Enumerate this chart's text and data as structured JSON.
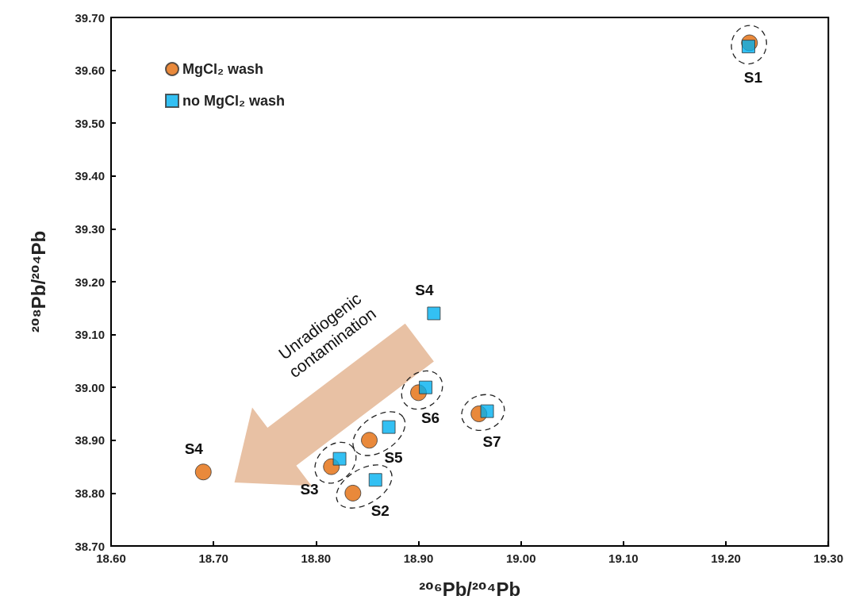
{
  "chart_data": {
    "type": "scatter",
    "xlabel": "²⁰⁶Pb/²⁰⁴Pb",
    "ylabel": "²⁰⁸Pb/²⁰⁴Pb",
    "series": [
      {
        "name": "MgCl₂ wash",
        "color": "#e46c0a",
        "marker": "circle",
        "x": [
          19.223,
          18.836,
          18.815,
          18.69,
          18.852,
          18.9,
          18.959
        ],
        "values": [
          39.652,
          38.8,
          38.85,
          38.84,
          38.9,
          38.99,
          38.95
        ]
      },
      {
        "name": "no MgCl₂ wash",
        "color": "#00b0f0",
        "marker": "square",
        "x": [
          19.222,
          18.858,
          18.823,
          18.915,
          18.871,
          18.907,
          18.967
        ],
        "values": [
          39.645,
          38.825,
          38.865,
          39.14,
          38.925,
          39.0,
          38.955
        ]
      }
    ],
    "xlim": [
      18.6,
      19.3
    ],
    "xticks": [
      {
        "value": 18.6,
        "label": "18.60"
      },
      {
        "value": 18.7,
        "label": "18.70"
      },
      {
        "value": 18.8,
        "label": "18.80"
      },
      {
        "value": 18.9,
        "label": "18.90"
      },
      {
        "value": 19.0,
        "label": "19.00"
      },
      {
        "value": 19.1,
        "label": "19.10"
      },
      {
        "value": 19.2,
        "label": "19.20"
      },
      {
        "value": 19.3,
        "label": "19.30"
      }
    ],
    "ylim": [
      38.7,
      39.7
    ],
    "yticks": [
      {
        "value": 38.7,
        "label": "38.70"
      },
      {
        "value": 38.8,
        "label": "38.80"
      },
      {
        "value": 38.9,
        "label": "38.90"
      },
      {
        "value": 39.0,
        "label": "39.00"
      },
      {
        "value": 39.1,
        "label": "39.10"
      },
      {
        "value": 39.2,
        "label": "39.20"
      },
      {
        "value": 39.3,
        "label": "39.30"
      },
      {
        "value": 39.4,
        "label": "39.40"
      },
      {
        "value": 39.5,
        "label": "39.50"
      },
      {
        "value": 39.6,
        "label": "39.60"
      },
      {
        "value": 39.7,
        "label": "39.70"
      }
    ],
    "grid": false,
    "legend": "top left",
    "annotations": [
      {
        "text": "S1",
        "x": 19.222,
        "y": 39.645
      },
      {
        "text": "S2",
        "x": 18.858,
        "y": 38.825
      },
      {
        "text": "S3",
        "x": 18.823,
        "y": 38.865
      },
      {
        "text": "S4",
        "x": 18.915,
        "y": 39.14
      },
      {
        "text": "S4",
        "x": 18.69,
        "y": 38.84
      },
      {
        "text": "S5",
        "x": 18.871,
        "y": 38.925
      },
      {
        "text": "S6",
        "x": 18.907,
        "y": 39.0
      },
      {
        "text": "S7",
        "x": 18.967,
        "y": 38.955
      },
      "Unradiogenic\ncontamination"
    ]
  }
}
